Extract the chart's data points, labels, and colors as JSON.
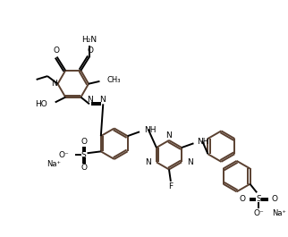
{
  "background_color": "#ffffff",
  "bond_color": "#000000",
  "ring_color": "#5a4030",
  "bond_lw": 1.4,
  "figsize": [
    3.22,
    2.65
  ],
  "dpi": 100,
  "text_fs": 6.5,
  "xlim": [
    0,
    322
  ],
  "ylim": [
    0,
    265
  ]
}
